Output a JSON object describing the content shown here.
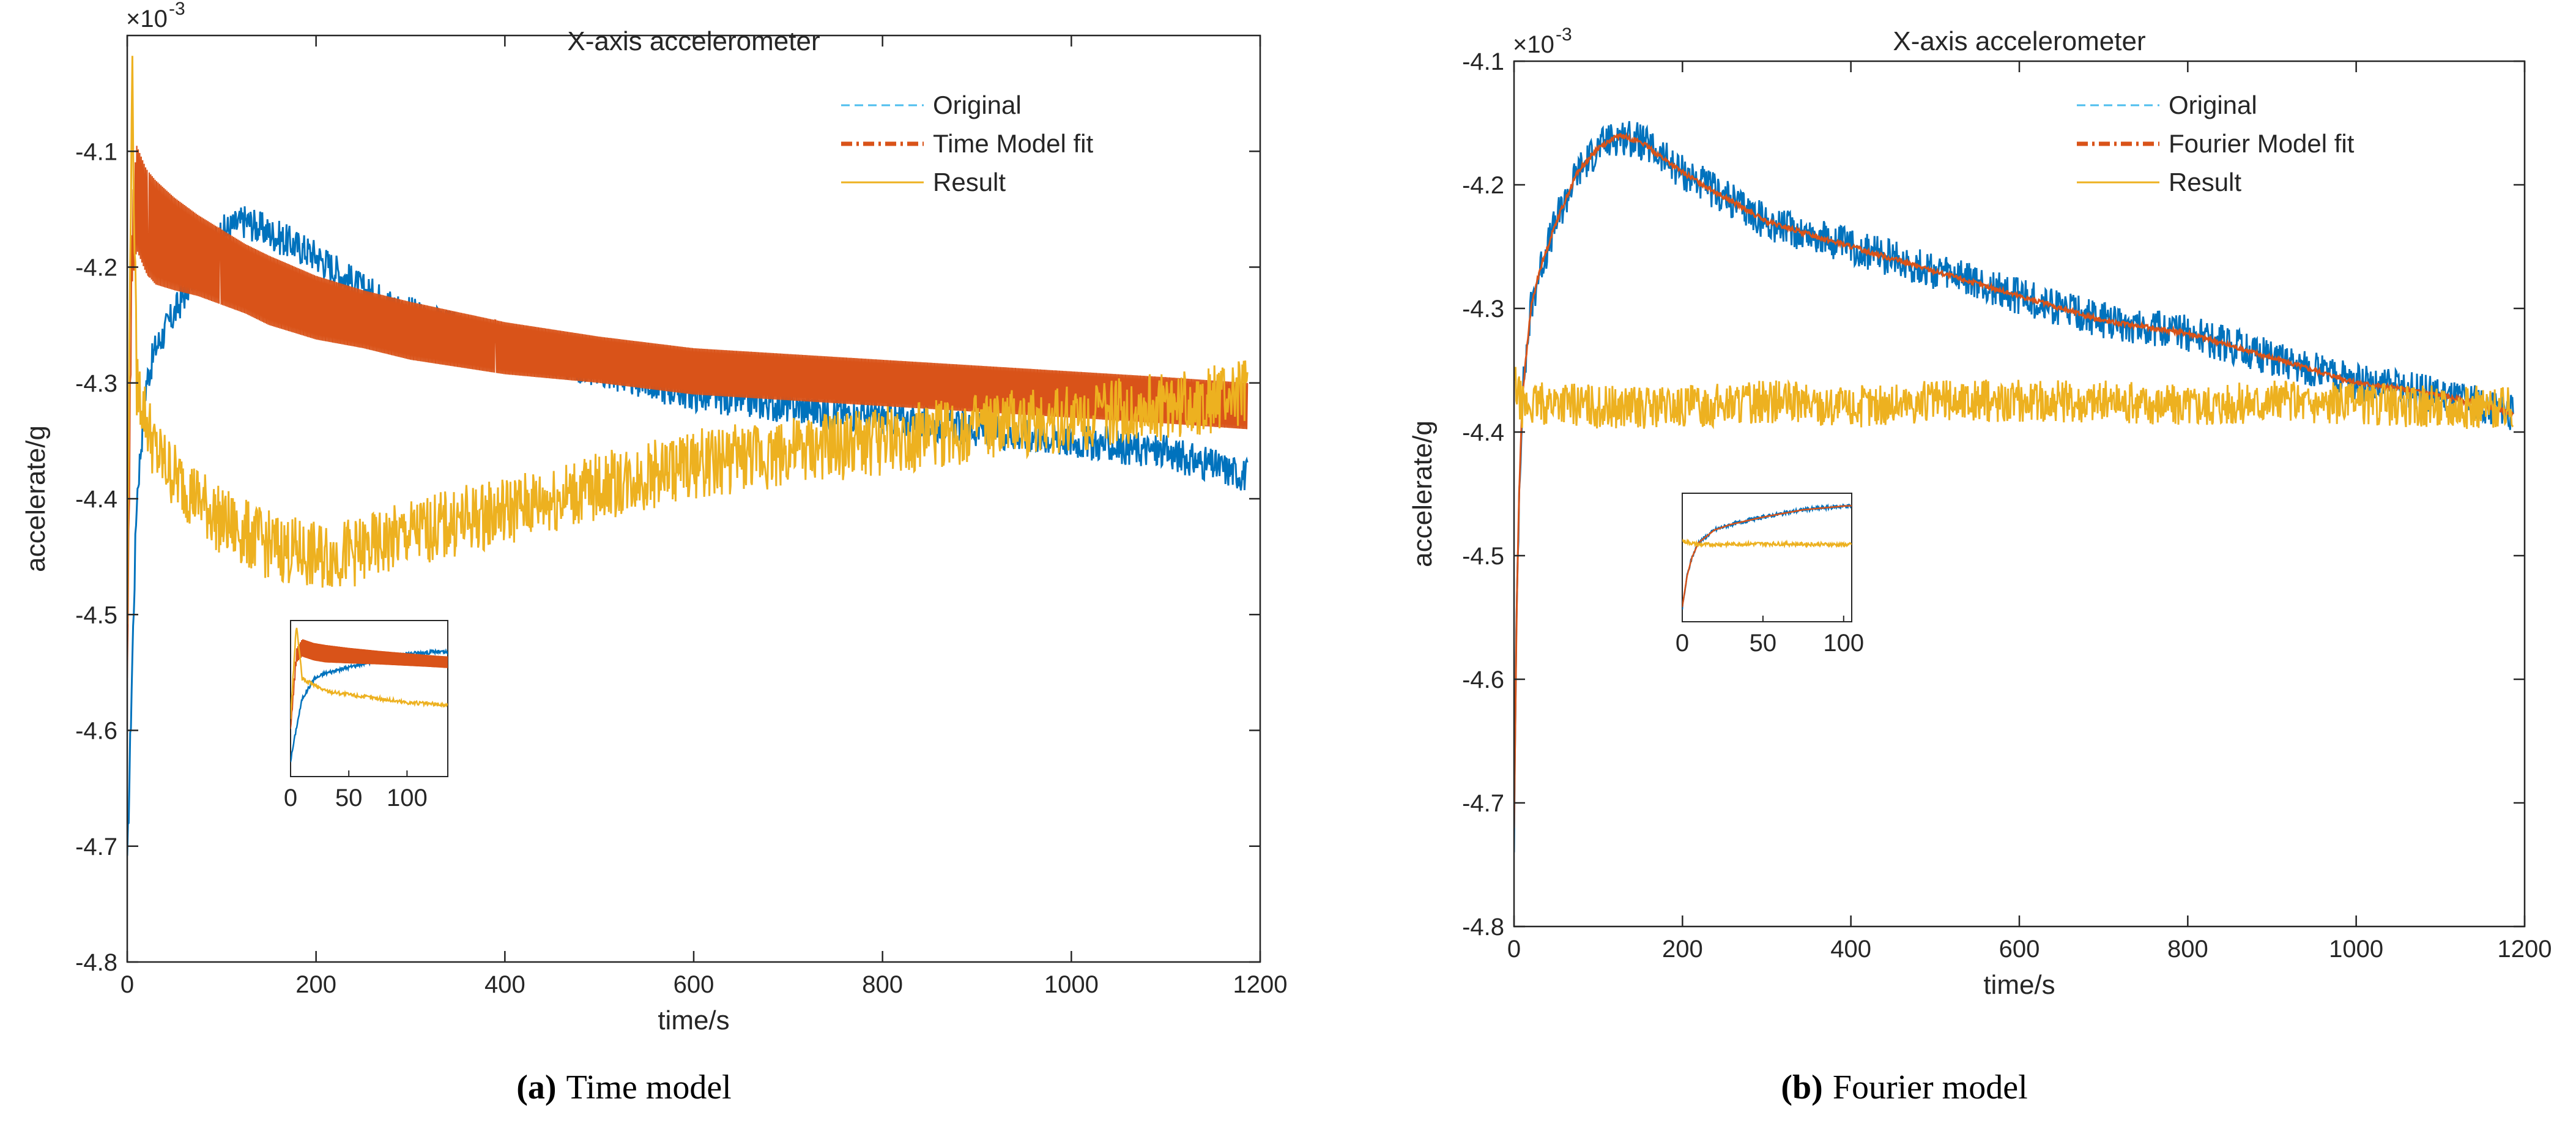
{
  "colors": {
    "original": "#0072BD",
    "original_legend": "#4DBEEE",
    "model": "#D95319",
    "result": "#EDB120",
    "axis": "#262626"
  },
  "chart_data": [
    {
      "id": "a",
      "type": "line",
      "title": "X-axis accelerometer",
      "xlabel": "time/s",
      "ylabel": "accelerate/g",
      "exponent_base": "×10",
      "exponent_power": "-3",
      "xlim": [
        0,
        1200
      ],
      "ylim": [
        -4.8,
        -4.0
      ],
      "xticks": [
        "0",
        "200",
        "400",
        "600",
        "800",
        "1000",
        "1200"
      ],
      "yticks": [
        "-4.8",
        "-4.7",
        "-4.6",
        "-4.5",
        "-4.4",
        "-4.3",
        "-4.2",
        "-4.1"
      ],
      "legend": {
        "placement": "top-right",
        "entries": [
          "Original",
          "Time Model fit",
          "Result"
        ]
      },
      "caption_label": "(a)",
      "caption_text": "Time model",
      "series": [
        {
          "name": "Original",
          "style": "dashed",
          "x": [
            0,
            5,
            10,
            20,
            30,
            50,
            75,
            100,
            125,
            150,
            200,
            250,
            300,
            400,
            500,
            600,
            700,
            800,
            900,
            1000,
            1100,
            1187
          ],
          "y": [
            -4.72,
            -4.55,
            -4.4,
            -4.3,
            -4.27,
            -4.24,
            -4.2,
            -4.17,
            -4.16,
            -4.17,
            -4.19,
            -4.22,
            -4.24,
            -4.27,
            -4.29,
            -4.31,
            -4.32,
            -4.33,
            -4.34,
            -4.35,
            -4.36,
            -4.38
          ]
        },
        {
          "name": "Time Model fit",
          "style": "dash-dot",
          "x": [
            0,
            5,
            10,
            20,
            30,
            50,
            75,
            100,
            125,
            150,
            200,
            250,
            300,
            400,
            500,
            600,
            700,
            800,
            900,
            1000,
            1100,
            1187
          ],
          "y": [
            -4.56,
            -4.18,
            -4.14,
            -4.16,
            -4.17,
            -4.18,
            -4.19,
            -4.2,
            -4.21,
            -4.22,
            -4.235,
            -4.245,
            -4.255,
            -4.27,
            -4.28,
            -4.29,
            -4.295,
            -4.3,
            -4.305,
            -4.31,
            -4.315,
            -4.32
          ],
          "band": [
            0.01,
            0.07,
            0.09,
            0.09,
            0.09,
            0.08,
            0.07,
            0.065,
            0.06,
            0.06,
            0.055,
            0.05,
            0.05,
            0.045,
            0.04,
            0.04,
            0.04,
            0.04,
            0.04,
            0.04,
            0.04,
            0.04
          ]
        },
        {
          "name": "Result",
          "style": "solid",
          "x": [
            0,
            5,
            10,
            20,
            30,
            50,
            75,
            100,
            150,
            200,
            250,
            300,
            400,
            500,
            600,
            700,
            800,
            900,
            1000,
            1100,
            1187
          ],
          "y": [
            -4.5,
            -4.02,
            -4.3,
            -4.33,
            -4.36,
            -4.38,
            -4.4,
            -4.42,
            -4.44,
            -4.45,
            -4.445,
            -4.43,
            -4.41,
            -4.39,
            -4.37,
            -4.36,
            -4.35,
            -4.34,
            -4.33,
            -4.32,
            -4.31
          ]
        }
      ],
      "inset": {
        "xlim": [
          0,
          135
        ],
        "ylim": [
          -4.8,
          -4.0
        ],
        "xticks": [
          "0",
          "50",
          "100"
        ]
      }
    },
    {
      "id": "b",
      "type": "line",
      "title": "X-axis accelerometer",
      "xlabel": "time/s",
      "ylabel": "accelerate/g",
      "exponent_base": "×10",
      "exponent_power": "-3",
      "xlim": [
        0,
        1200
      ],
      "ylim": [
        -4.8,
        -4.1
      ],
      "xticks": [
        "0",
        "200",
        "400",
        "600",
        "800",
        "1000",
        "1200"
      ],
      "yticks": [
        "-4.8",
        "-4.7",
        "-4.6",
        "-4.5",
        "-4.4",
        "-4.3",
        "-4.2",
        "-4.1"
      ],
      "legend": {
        "placement": "top-right",
        "entries": [
          "Original",
          "Fourier Model fit",
          "Result"
        ]
      },
      "caption_label": "(b)",
      "caption_text": "Fourier model",
      "series": [
        {
          "name": "Original",
          "style": "dashed",
          "x": [
            0,
            3,
            6,
            10,
            20,
            30,
            50,
            75,
            100,
            125,
            150,
            200,
            250,
            300,
            400,
            500,
            600,
            700,
            800,
            900,
            1000,
            1100,
            1187
          ],
          "y": [
            -4.73,
            -4.55,
            -4.45,
            -4.37,
            -4.3,
            -4.27,
            -4.23,
            -4.19,
            -4.17,
            -4.16,
            -4.165,
            -4.19,
            -4.21,
            -4.23,
            -4.25,
            -4.27,
            -4.29,
            -4.31,
            -4.32,
            -4.34,
            -4.36,
            -4.37,
            -4.385
          ]
        },
        {
          "name": "Fourier Model fit",
          "style": "dash-dot",
          "x": [
            0,
            3,
            6,
            10,
            20,
            30,
            50,
            75,
            100,
            125,
            150,
            200,
            250,
            300,
            400,
            500,
            600,
            700,
            800,
            900,
            1000,
            1100,
            1187
          ],
          "y": [
            -4.72,
            -4.55,
            -4.45,
            -4.37,
            -4.3,
            -4.27,
            -4.23,
            -4.19,
            -4.17,
            -4.16,
            -4.165,
            -4.19,
            -4.21,
            -4.23,
            -4.25,
            -4.27,
            -4.29,
            -4.31,
            -4.32,
            -4.34,
            -4.36,
            -4.37,
            -4.385
          ]
        },
        {
          "name": "Result",
          "style": "solid",
          "x": [
            0,
            10,
            50,
            100,
            200,
            300,
            400,
            500,
            600,
            700,
            800,
            900,
            1000,
            1100,
            1187
          ],
          "y": [
            -4.36,
            -4.38,
            -4.375,
            -4.38,
            -4.38,
            -4.375,
            -4.38,
            -4.375,
            -4.375,
            -4.375,
            -4.378,
            -4.375,
            -4.378,
            -4.38,
            -4.38
          ]
        }
      ],
      "inset": {
        "xlim": [
          0,
          105
        ],
        "ylim": [
          -4.8,
          -4.1
        ],
        "xticks": [
          "0",
          "50",
          "100"
        ]
      }
    }
  ]
}
